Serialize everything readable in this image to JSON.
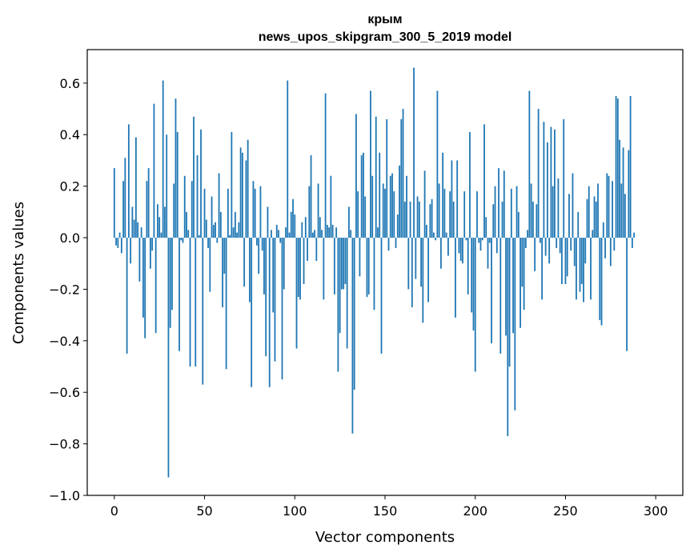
{
  "chart_data": {
    "type": "bar",
    "title": "крым",
    "subtitle": "news_upos_skipgram_300_5_2019 model",
    "xlabel": "Vector components",
    "ylabel": "Components values",
    "xlim": [
      -15,
      315
    ],
    "ylim": [
      -1.0,
      0.73
    ],
    "xticks": [
      0,
      50,
      100,
      150,
      200,
      250,
      300
    ],
    "yticks": [
      0.6,
      0.4,
      0.2,
      0.0,
      -0.2,
      -0.4,
      -0.6,
      -0.8,
      -1.0
    ],
    "ytick_labels": [
      "0.6",
      "0.4",
      "0.2",
      "0.0",
      "−0.2",
      "−0.4",
      "−0.6",
      "−0.8",
      "−1.0"
    ],
    "grid": false,
    "bar_color": "#1f77b4",
    "values": [
      0.27,
      -0.03,
      -0.04,
      0.02,
      -0.06,
      0.22,
      0.31,
      -0.45,
      0.44,
      -0.1,
      0.12,
      0.07,
      0.39,
      0.06,
      -0.17,
      0.04,
      -0.31,
      -0.39,
      0.22,
      0.27,
      -0.12,
      -0.05,
      0.52,
      -0.37,
      0.13,
      0.08,
      0.02,
      0.61,
      0.12,
      0.4,
      -0.93,
      -0.35,
      -0.28,
      0.21,
      0.54,
      0.41,
      -0.44,
      -0.01,
      -0.02,
      0.24,
      0.1,
      0.03,
      -0.5,
      0.22,
      0.47,
      -0.5,
      0.32,
      0.01,
      0.42,
      -0.57,
      0.19,
      0.07,
      -0.04,
      -0.21,
      0.16,
      0.05,
      0.06,
      -0.02,
      0.25,
      0.1,
      -0.27,
      -0.14,
      -0.51,
      0.19,
      0.01,
      0.41,
      0.04,
      0.1,
      0.02,
      0.06,
      0.35,
      0.33,
      -0.19,
      0.3,
      0.38,
      -0.25,
      -0.58,
      0.22,
      0.19,
      -0.03,
      -0.14,
      0.2,
      -0.05,
      -0.22,
      -0.46,
      0.12,
      -0.58,
      0.03,
      -0.29,
      -0.48,
      0.05,
      0.03,
      -0.02,
      -0.55,
      -0.2,
      0.04,
      0.61,
      0.02,
      0.1,
      0.15,
      0.09,
      -0.43,
      -0.23,
      -0.24,
      0.06,
      -0.18,
      0.08,
      -0.09,
      0.2,
      0.32,
      0.02,
      0.03,
      -0.09,
      0.21,
      0.08,
      0.03,
      -0.24,
      0.56,
      0.05,
      0.04,
      0.24,
      0.05,
      -0.22,
      0.04,
      -0.52,
      -0.37,
      -0.2,
      -0.2,
      -0.18,
      -0.43,
      0.12,
      0.03,
      -0.76,
      -0.59,
      0.48,
      0.18,
      -0.15,
      0.32,
      0.33,
      0.16,
      -0.23,
      -0.22,
      0.57,
      0.24,
      -0.28,
      0.47,
      0.04,
      0.33,
      -0.45,
      0.21,
      0.19,
      0.46,
      -0.05,
      0.24,
      0.25,
      0.18,
      -0.04,
      0.09,
      0.28,
      0.46,
      0.5,
      0.14,
      0.24,
      -0.2,
      0.14,
      -0.27,
      0.66,
      -0.16,
      0.16,
      0.14,
      -0.19,
      -0.33,
      0.26,
      0.05,
      -0.25,
      0.13,
      0.15,
      0.02,
      -0.01,
      0.57,
      0.21,
      -0.12,
      0.33,
      0.19,
      0.02,
      -0.07,
      0.18,
      0.3,
      0.14,
      -0.31,
      0.3,
      -0.06,
      -0.09,
      -0.1,
      0.18,
      -0.01,
      -0.22,
      0.41,
      -0.29,
      -0.36,
      -0.52,
      0.18,
      -0.02,
      -0.05,
      -0.01,
      0.44,
      0.08,
      -0.12,
      -0.02,
      -0.41,
      0.13,
      0.2,
      -0.06,
      0.27,
      -0.45,
      0.14,
      0.26,
      -0.38,
      -0.77,
      -0.5,
      0.19,
      -0.37,
      -0.67,
      0.2,
      0.1,
      -0.35,
      -0.19,
      -0.28,
      -0.04,
      0.03,
      0.57,
      0.21,
      0.14,
      -0.13,
      0.13,
      0.5,
      -0.02,
      -0.24,
      0.45,
      -0.07,
      0.37,
      -0.1,
      0.43,
      0.2,
      0.42,
      -0.04,
      0.23,
      -0.06,
      -0.18,
      0.46,
      -0.18,
      -0.15,
      0.17,
      -0.05,
      0.25,
      -0.11,
      -0.24,
      0.1,
      -0.21,
      -0.18,
      -0.25,
      -0.1,
      0.15,
      0.2,
      -0.24,
      0.03,
      0.16,
      0.14,
      0.21,
      -0.32,
      -0.34,
      0.06,
      -0.08,
      0.25,
      0.24,
      -0.11,
      0.22,
      -0.05,
      0.55,
      0.54,
      0.38,
      0.21,
      0.35,
      0.17,
      -0.44,
      0.34,
      0.55,
      -0.04,
      0.02
    ]
  }
}
